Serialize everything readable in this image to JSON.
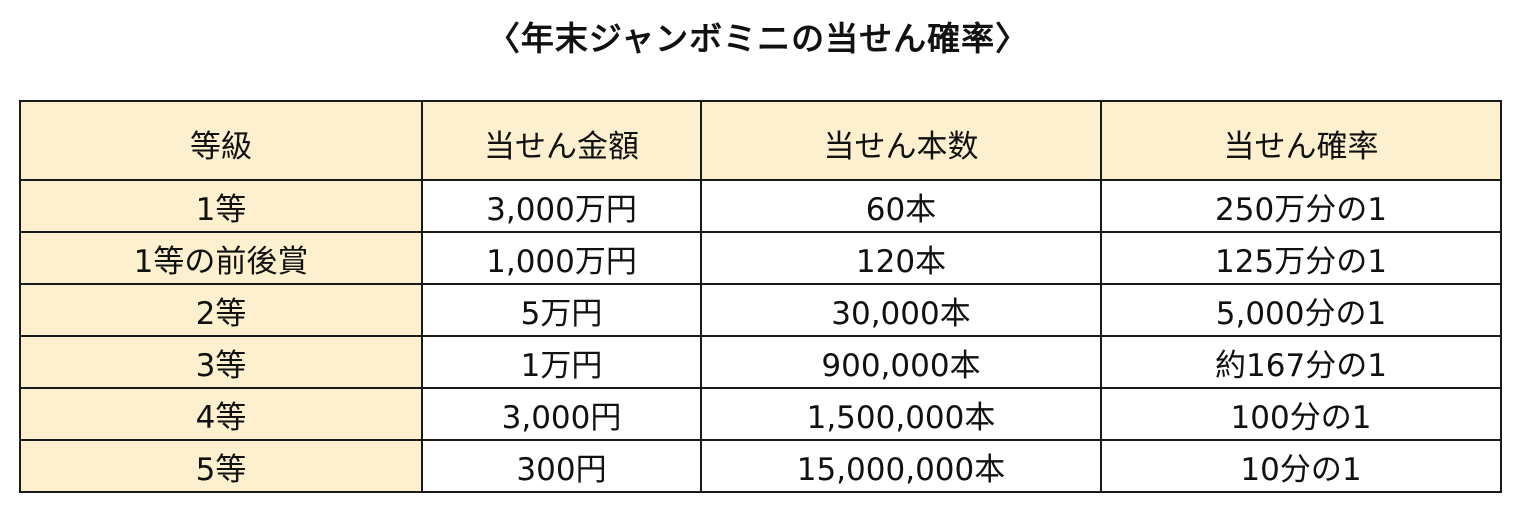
{
  "title": "〈年末ジャンボミニの当せん確率〉",
  "table": {
    "headers": [
      "等級",
      "当せん金額",
      "当せん本数",
      "当せん確率"
    ],
    "rows": [
      {
        "grade": "1等",
        "amount": "3,000万円",
        "count": "60本",
        "probability": "250万分の1"
      },
      {
        "grade": "1等の前後賞",
        "amount": "1,000万円",
        "count": "120本",
        "probability": "125万分の1"
      },
      {
        "grade": "2等",
        "amount": "5万円",
        "count": "30,000本",
        "probability": "5,000分の1"
      },
      {
        "grade": "3等",
        "amount": "1万円",
        "count": "900,000本",
        "probability": "約167分の1"
      },
      {
        "grade": "4等",
        "amount": "3,000円",
        "count": "1,500,000本",
        "probability": "100分の1"
      },
      {
        "grade": "5等",
        "amount": "300円",
        "count": "15,000,000本",
        "probability": "10分の1"
      }
    ]
  },
  "colors": {
    "header_background": "#fdf0cf",
    "border": "#1a1a1a",
    "cell_background": "#ffffff"
  }
}
